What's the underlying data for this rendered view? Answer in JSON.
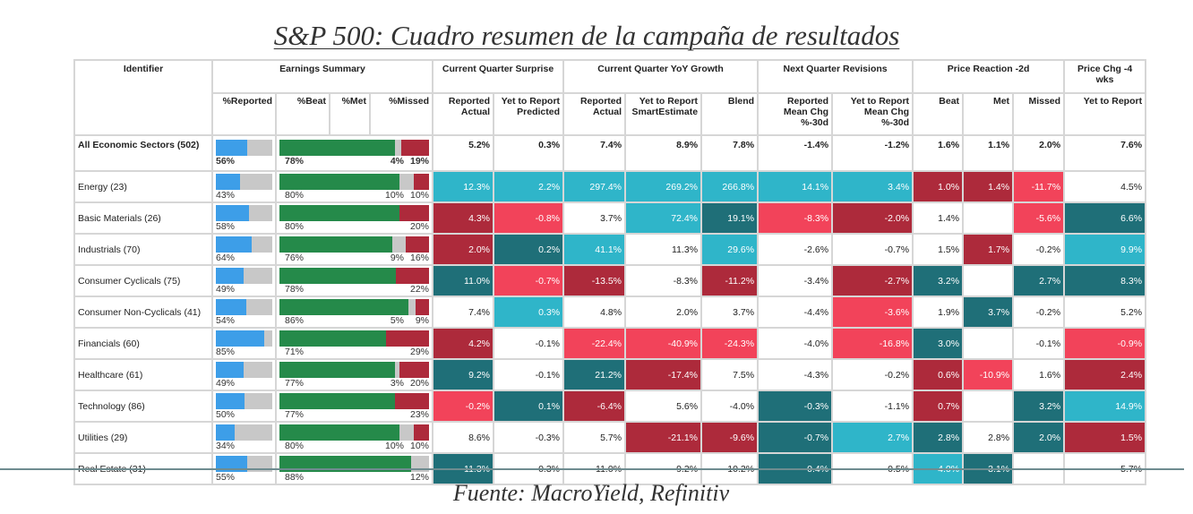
{
  "title": "S&P 500: Cuadro resumen de la campaña de resultados",
  "source": "Fuente: MacroYield, Refinitiv",
  "colors": {
    "cyan": "#2fb5c9",
    "teal": "#1f6f78",
    "dark_red": "#ad2a3b",
    "pink_red": "#f2435a",
    "reported_bar": "#3d9ee8",
    "beat_bar": "#258a4a",
    "met_bar": "#c8c8c8",
    "missed_bar": "#ad2a3b"
  },
  "header": {
    "identifier": "Identifier",
    "groups": [
      "Earnings Summary",
      "Current Quarter Surprise",
      "Current Quarter YoY Growth",
      "Next Quarter Revisions",
      "Price Reaction -2d",
      "Price Chg -4 wks"
    ],
    "earnings_sub": [
      "%Reported",
      "%Beat",
      "%Met",
      "%Missed"
    ],
    "metric_sub": [
      "Reported Actual",
      "Yet to Report Predicted",
      "Reported Actual",
      "Yet to Report SmartEstimate",
      "Blend",
      "Reported Mean Chg %-30d",
      "Yet to Report Mean Chg %-30d",
      "Beat",
      "Met",
      "Missed",
      "Yet to Report"
    ]
  },
  "cell_color_legend": {
    "c": "cyan",
    "t": "teal",
    "r": "dark_red",
    "p": "pink_red",
    "": "white"
  },
  "rows": [
    {
      "name": "All Economic Sectors (502)",
      "reported": 56,
      "beat": 78,
      "met": 4,
      "missed": 19,
      "values": [
        "5.2%",
        "0.3%",
        "7.4%",
        "8.9%",
        "7.8%",
        "-1.4%",
        "-1.2%",
        "1.6%",
        "1.1%",
        "2.0%",
        "7.6%"
      ],
      "colors": [
        "",
        "",
        "",
        "",
        "",
        "",
        "",
        "",
        "",
        "",
        ""
      ]
    },
    {
      "name": "Energy (23)",
      "reported": 43,
      "beat": 80,
      "met": 10,
      "missed": 10,
      "values": [
        "12.3%",
        "2.2%",
        "297.4%",
        "269.2%",
        "266.8%",
        "14.1%",
        "3.4%",
        "1.0%",
        "1.4%",
        "-11.7%",
        "4.5%"
      ],
      "colors": [
        "c",
        "c",
        "c",
        "c",
        "c",
        "c",
        "c",
        "r",
        "r",
        "p",
        ""
      ]
    },
    {
      "name": "Basic Materials (26)",
      "reported": 58,
      "beat": 80,
      "met": null,
      "missed": 20,
      "values": [
        "4.3%",
        "-0.8%",
        "3.7%",
        "72.4%",
        "19.1%",
        "-8.3%",
        "-2.0%",
        "1.4%",
        "",
        "-5.6%",
        "6.6%"
      ],
      "colors": [
        "r",
        "p",
        "",
        "c",
        "t",
        "p",
        "r",
        "",
        "",
        "p",
        "t"
      ]
    },
    {
      "name": "Industrials (70)",
      "reported": 64,
      "beat": 76,
      "met": 9,
      "missed": 16,
      "values": [
        "2.0%",
        "0.2%",
        "41.1%",
        "11.3%",
        "29.6%",
        "-2.6%",
        "-0.7%",
        "1.5%",
        "1.7%",
        "-0.2%",
        "9.9%"
      ],
      "colors": [
        "r",
        "t",
        "c",
        "",
        "c",
        "",
        "",
        "",
        "r",
        "",
        "c"
      ]
    },
    {
      "name": "Consumer Cyclicals (75)",
      "reported": 49,
      "beat": 78,
      "met": null,
      "missed": 22,
      "values": [
        "11.0%",
        "-0.7%",
        "-13.5%",
        "-8.3%",
        "-11.2%",
        "-3.4%",
        "-2.7%",
        "3.2%",
        "",
        "2.7%",
        "8.3%"
      ],
      "colors": [
        "t",
        "p",
        "r",
        "",
        "r",
        "",
        "r",
        "t",
        "",
        "t",
        "t"
      ]
    },
    {
      "name": "Consumer Non-Cyclicals (41)",
      "reported": 54,
      "beat": 86,
      "met": 5,
      "missed": 9,
      "values": [
        "7.4%",
        "0.3%",
        "4.8%",
        "2.0%",
        "3.7%",
        "-4.4%",
        "-3.6%",
        "1.9%",
        "3.7%",
        "-0.2%",
        "5.2%"
      ],
      "colors": [
        "",
        "c",
        "",
        "",
        "",
        "",
        "p",
        "",
        "t",
        "",
        ""
      ]
    },
    {
      "name": "Financials (60)",
      "reported": 85,
      "beat": 71,
      "met": null,
      "missed": 29,
      "values": [
        "4.2%",
        "-0.1%",
        "-22.4%",
        "-40.9%",
        "-24.3%",
        "-4.0%",
        "-16.8%",
        "3.0%",
        "",
        "-0.1%",
        "-0.9%"
      ],
      "colors": [
        "r",
        "",
        "p",
        "p",
        "p",
        "",
        "p",
        "t",
        "",
        "",
        "p"
      ]
    },
    {
      "name": "Healthcare (61)",
      "reported": 49,
      "beat": 77,
      "met": 3,
      "missed": 20,
      "values": [
        "9.2%",
        "-0.1%",
        "21.2%",
        "-17.4%",
        "7.5%",
        "-4.3%",
        "-0.2%",
        "0.6%",
        "-10.9%",
        "1.6%",
        "2.4%"
      ],
      "colors": [
        "t",
        "",
        "t",
        "r",
        "",
        "",
        "",
        "r",
        "p",
        "",
        "r"
      ]
    },
    {
      "name": "Technology (86)",
      "reported": 50,
      "beat": 77,
      "met": null,
      "missed": 23,
      "values": [
        "-0.2%",
        "0.1%",
        "-6.4%",
        "5.6%",
        "-4.0%",
        "-0.3%",
        "-1.1%",
        "0.7%",
        "",
        "3.2%",
        "14.9%"
      ],
      "colors": [
        "p",
        "t",
        "r",
        "",
        "",
        "t",
        "",
        "r",
        "",
        "t",
        "c"
      ]
    },
    {
      "name": "Utilities (29)",
      "reported": 34,
      "beat": 80,
      "met": 10,
      "missed": 10,
      "values": [
        "8.6%",
        "-0.3%",
        "5.7%",
        "-21.1%",
        "-9.6%",
        "-0.7%",
        "2.7%",
        "2.8%",
        "2.8%",
        "2.0%",
        "1.5%"
      ],
      "colors": [
        "",
        "",
        "",
        "r",
        "r",
        "t",
        "c",
        "t",
        "",
        "t",
        "r"
      ]
    },
    {
      "name": "Real Estate (31)",
      "reported": 55,
      "beat": 88,
      "met": 12,
      "missed": null,
      "values": [
        "11.3%",
        "-0.3%",
        "11.0%",
        "9.2%",
        "10.2%",
        "-0.4%",
        "-0.5%",
        "4.0%",
        "3.1%",
        "",
        "5.7%"
      ],
      "colors": [
        "t",
        "",
        "",
        "",
        "",
        "t",
        "",
        "c",
        "t",
        "",
        ""
      ]
    }
  ]
}
